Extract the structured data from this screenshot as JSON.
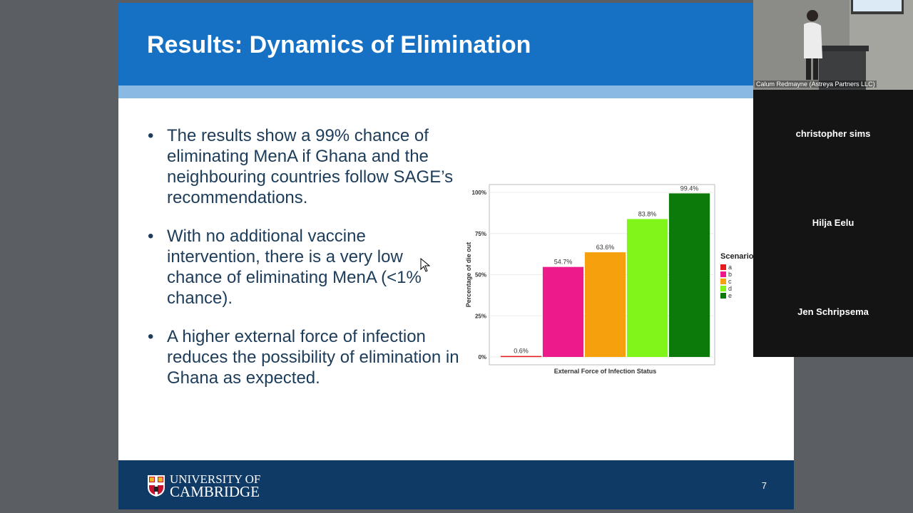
{
  "slide": {
    "title": "Results: Dynamics of Elimination",
    "bullets": [
      "The results show a 99% chance of eliminating MenA if Ghana and the neighbouring countries follow SAGE’s recommendations.",
      "With no additional vaccine intervention, there is a very low chance of eliminating MenA (<1% chance).",
      "A higher external force of infection reduces the possibility of elimination in Ghana as expected."
    ],
    "bullet_symbol": "•",
    "footer": {
      "university_line1": "UNIVERSITY OF",
      "university_line2": "CAMBRIDGE",
      "page_number": "7"
    }
  },
  "chart_data": {
    "type": "bar",
    "categories": [
      "a",
      "b",
      "c",
      "d",
      "e"
    ],
    "values": [
      0.6,
      54.7,
      63.6,
      83.8,
      99.4
    ],
    "data_labels": [
      "0.6%",
      "54.7%",
      "63.6%",
      "83.8%",
      "99.4%"
    ],
    "colors": [
      "#e41a1c",
      "#ed1a8c",
      "#f5a00c",
      "#80f51a",
      "#0b7a0b"
    ],
    "xlabel": "External Force of Infection Status",
    "ylabel": "Percentage of die out",
    "yticks": [
      0,
      25,
      50,
      75,
      100
    ],
    "ytick_labels": [
      "0%",
      "25%",
      "50%",
      "75%",
      "100%"
    ],
    "ylim": [
      0,
      100
    ],
    "legend_title": "Scenario",
    "legend_position": "right",
    "grid": true
  },
  "participants": {
    "video_name": "Calum Redmayne (Astreya Partners LLC)",
    "names": [
      "christopher sims",
      "Hilja Eelu",
      "Jen Schripsema"
    ]
  }
}
